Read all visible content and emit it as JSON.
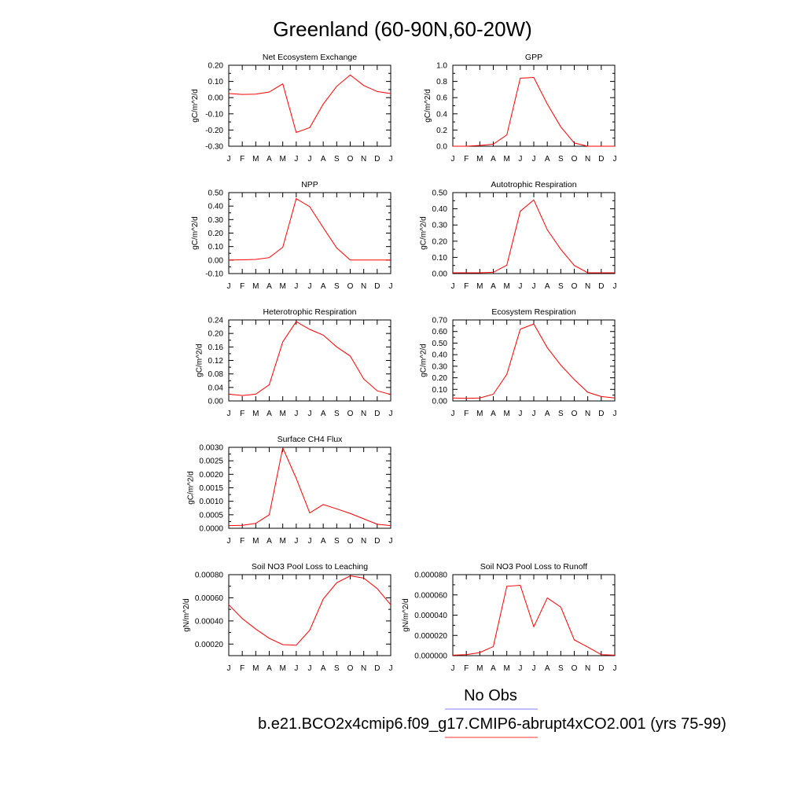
{
  "title": "Greenland (60-90N,60-20W)",
  "legend": [
    {
      "label": "No Obs",
      "color": "#7f7fff"
    },
    {
      "label": "b.e21.BCO2x4cmip6.f09_g17.CMIP6-abrupt4xCO2.001 (yrs 75-99)",
      "color": "#ff3333"
    }
  ],
  "chart_data": [
    {
      "type": "line",
      "title": "Net Ecosystem Exchange",
      "ylabel": "gC/m^2/d",
      "categories": [
        "J",
        "F",
        "M",
        "A",
        "M",
        "J",
        "J",
        "A",
        "S",
        "O",
        "N",
        "D",
        "J"
      ],
      "ylim": [
        -0.3,
        0.2
      ],
      "yticks": [
        "0.20",
        "0.10",
        "0.00",
        "-0.10",
        "-0.20",
        "-0.30"
      ],
      "series": [
        {
          "color": "#ff0000",
          "values": [
            0.025,
            0.02,
            0.022,
            0.035,
            0.085,
            -0.215,
            -0.185,
            -0.04,
            0.07,
            0.14,
            0.075,
            0.038,
            0.025
          ]
        }
      ]
    },
    {
      "type": "line",
      "title": "GPP",
      "ylabel": "gC/m^2/d",
      "categories": [
        "J",
        "F",
        "M",
        "A",
        "M",
        "J",
        "J",
        "A",
        "S",
        "O",
        "N",
        "D",
        "J"
      ],
      "ylim": [
        0.0,
        1.0
      ],
      "yticks": [
        "1.0",
        "0.8",
        "0.6",
        "0.4",
        "0.2",
        "0.0"
      ],
      "series": [
        {
          "color": "#ff0000",
          "values": [
            0.0,
            0.0,
            0.01,
            0.025,
            0.14,
            0.84,
            0.85,
            0.52,
            0.24,
            0.04,
            0.0,
            0.0,
            0.0
          ]
        }
      ]
    },
    {
      "type": "line",
      "title": "NPP",
      "ylabel": "gC/m^2/d",
      "categories": [
        "J",
        "F",
        "M",
        "A",
        "M",
        "J",
        "J",
        "A",
        "S",
        "O",
        "N",
        "D",
        "J"
      ],
      "ylim": [
        -0.1,
        0.5
      ],
      "yticks": [
        "0.50",
        "0.40",
        "0.30",
        "0.20",
        "0.10",
        "0.00",
        "-0.10"
      ],
      "series": [
        {
          "color": "#ff0000",
          "values": [
            0.0,
            0.002,
            0.005,
            0.018,
            0.095,
            0.455,
            0.395,
            0.24,
            0.09,
            0.0,
            0.0,
            0.0,
            0.0
          ]
        }
      ]
    },
    {
      "type": "line",
      "title": "Autotrophic Respiration",
      "ylabel": "gC/m^2/d",
      "categories": [
        "J",
        "F",
        "M",
        "A",
        "M",
        "J",
        "J",
        "A",
        "S",
        "O",
        "N",
        "D",
        "J"
      ],
      "ylim": [
        0.0,
        0.5
      ],
      "yticks": [
        "0.50",
        "0.40",
        "0.30",
        "0.20",
        "0.10",
        "0.00"
      ],
      "series": [
        {
          "color": "#ff0000",
          "values": [
            0.005,
            0.005,
            0.005,
            0.008,
            0.052,
            0.385,
            0.455,
            0.27,
            0.15,
            0.05,
            0.005,
            0.005,
            0.005
          ]
        }
      ]
    },
    {
      "type": "line",
      "title": "Heterotrophic Respiration",
      "ylabel": "gC/m^2/d",
      "categories": [
        "J",
        "F",
        "M",
        "A",
        "M",
        "J",
        "J",
        "A",
        "S",
        "O",
        "N",
        "D",
        "J"
      ],
      "ylim": [
        0.0,
        0.24
      ],
      "yticks": [
        "0.24",
        "0.20",
        "0.16",
        "0.12",
        "0.08",
        "0.04",
        "0.00"
      ],
      "series": [
        {
          "color": "#ff0000",
          "values": [
            0.02,
            0.016,
            0.02,
            0.048,
            0.175,
            0.235,
            0.212,
            0.195,
            0.16,
            0.133,
            0.065,
            0.03,
            0.019
          ]
        }
      ]
    },
    {
      "type": "line",
      "title": "Ecosystem Respiration",
      "ylabel": "gC/m^2/d",
      "categories": [
        "J",
        "F",
        "M",
        "A",
        "M",
        "J",
        "J",
        "A",
        "S",
        "O",
        "N",
        "D",
        "J"
      ],
      "ylim": [
        0.0,
        0.7
      ],
      "yticks": [
        "0.70",
        "0.60",
        "0.50",
        "0.40",
        "0.30",
        "0.20",
        "0.10",
        "0.00"
      ],
      "series": [
        {
          "color": "#ff0000",
          "values": [
            0.025,
            0.022,
            0.026,
            0.058,
            0.23,
            0.62,
            0.665,
            0.46,
            0.31,
            0.185,
            0.075,
            0.038,
            0.025
          ]
        }
      ]
    },
    {
      "type": "line",
      "title": "Surface CH4 Flux",
      "ylabel": "gC/m^2/d",
      "categories": [
        "J",
        "F",
        "M",
        "A",
        "M",
        "J",
        "J",
        "A",
        "S",
        "O",
        "N",
        "D",
        "J"
      ],
      "ylim": [
        0.0,
        0.003
      ],
      "yticks": [
        "0.0030",
        "0.0025",
        "0.0020",
        "0.0015",
        "0.0010",
        "0.0005",
        "0.0000"
      ],
      "series": [
        {
          "color": "#ff0000",
          "values": [
            0.0001,
            0.00011,
            0.00018,
            0.0005,
            0.00298,
            0.00185,
            0.00057,
            0.00088,
            0.00072,
            0.00055,
            0.00035,
            0.00015,
            0.0001
          ]
        }
      ]
    },
    {
      "type": "line",
      "title": "Soil NO3 Pool Loss to Leaching",
      "ylabel": "gN/m^2/d",
      "categories": [
        "J",
        "F",
        "M",
        "A",
        "M",
        "J",
        "J",
        "A",
        "S",
        "O",
        "N",
        "D",
        "J"
      ],
      "ylim": [
        0.0001,
        0.0008
      ],
      "yticks": [
        "0.00080",
        "0.00060",
        "0.00040",
        "0.00020"
      ],
      "series": [
        {
          "color": "#ff0000",
          "values": [
            0.00054,
            0.00042,
            0.00033,
            0.00025,
            0.000195,
            0.00019,
            0.00032,
            0.00059,
            0.00073,
            0.00079,
            0.00077,
            0.00068,
            0.00054
          ]
        }
      ]
    },
    {
      "type": "line",
      "title": "Soil NO3 Pool Loss to Runoff",
      "ylabel": "gN/m^2/d",
      "categories": [
        "J",
        "F",
        "M",
        "A",
        "M",
        "J",
        "J",
        "A",
        "S",
        "O",
        "N",
        "D",
        "J"
      ],
      "ylim": [
        0.0,
        8e-05
      ],
      "yticks": [
        "0.000080",
        "0.000060",
        "0.000040",
        "0.000020",
        "0.000000"
      ],
      "series": [
        {
          "color": "#ff0000",
          "values": [
            5e-07,
            1e-06,
            3e-06,
            9e-06,
            6.85e-05,
            6.95e-05,
            2.85e-05,
            5.7e-05,
            4.8e-05,
            1.55e-05,
            8.5e-06,
            1e-06,
            5e-07
          ]
        }
      ]
    }
  ]
}
